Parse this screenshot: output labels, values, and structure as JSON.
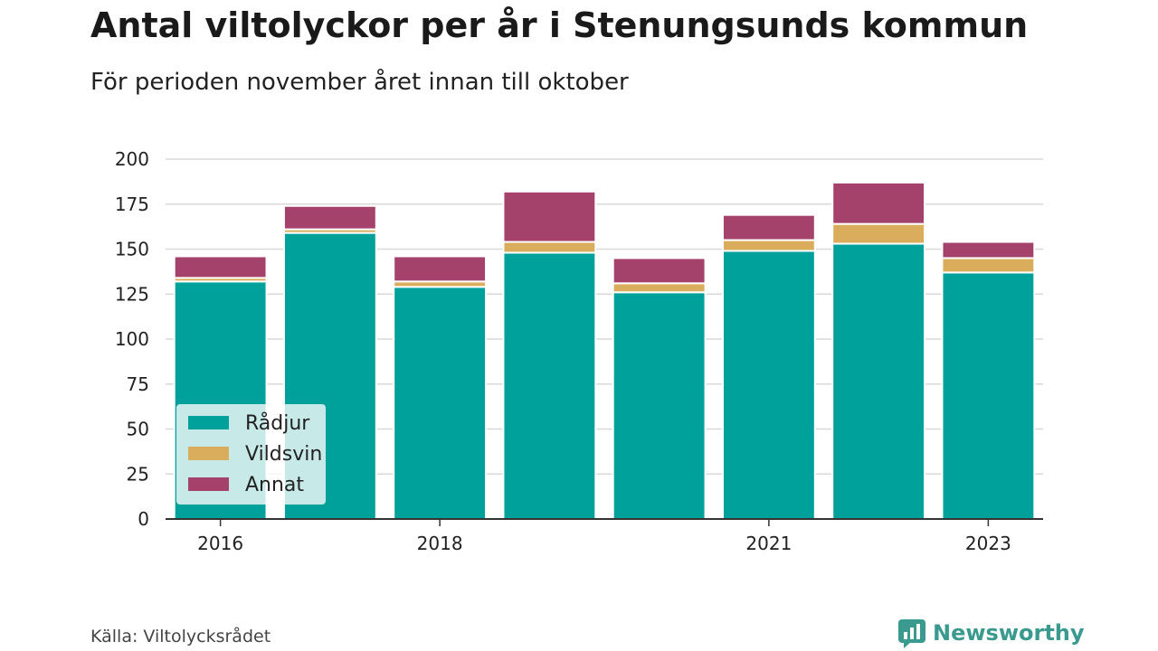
{
  "title": "Antal viltolyckor per år i Stenungsunds kommun",
  "subtitle": "För perioden november året innan till oktober",
  "source": "Källa: Viltolycksrådet",
  "brand": "Newsworthy",
  "colors": {
    "radjur": "#00a19a",
    "vildsvin": "#d9ad5b",
    "annat": "#a4426b",
    "brand": "#3a9a8f"
  },
  "chart_data": {
    "type": "bar",
    "stacked": true,
    "title": "Antal viltolyckor per år i Stenungsunds kommun",
    "subtitle": "För perioden november året innan till oktober",
    "xlabel": "",
    "ylabel": "",
    "ylim": [
      0,
      200
    ],
    "yticks": [
      0,
      25,
      50,
      75,
      100,
      125,
      150,
      175,
      200
    ],
    "grid": true,
    "legend_position": "bottom-left",
    "categories": [
      2016,
      2017,
      2018,
      2019,
      2020,
      2021,
      2022,
      2023
    ],
    "x_tick_labels": [
      "2016",
      "",
      "2018",
      "",
      "",
      "2021",
      "",
      "2023"
    ],
    "series": [
      {
        "name": "Rådjur",
        "color": "#00a19a",
        "values": [
          132,
          159,
          129,
          148,
          126,
          149,
          153,
          137
        ]
      },
      {
        "name": "Vildsvin",
        "color": "#d9ad5b",
        "values": [
          2,
          2,
          3,
          6,
          5,
          6,
          11,
          8
        ]
      },
      {
        "name": "Annat",
        "color": "#a4426b",
        "values": [
          12,
          13,
          14,
          28,
          14,
          14,
          23,
          9
        ]
      }
    ]
  }
}
